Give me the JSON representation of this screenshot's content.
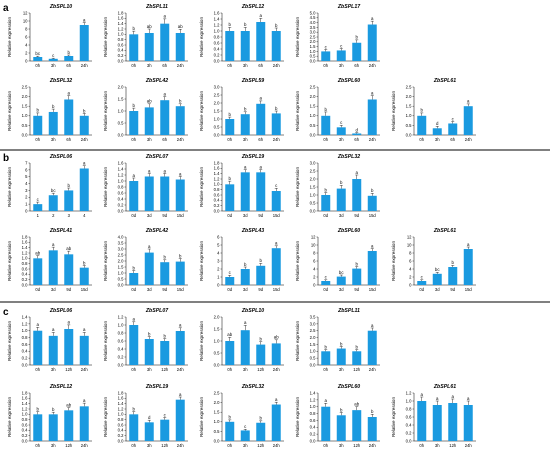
{
  "panels": [
    {
      "label": "a",
      "charts": [
        {
          "type": "bar",
          "title": "ZbSPL10",
          "categories": [
            "0h",
            "3h",
            "6h",
            "24h"
          ],
          "values": [
            1.0,
            0.55,
            1.25,
            9.0
          ],
          "errors": [
            0.2,
            0.15,
            0.25,
            0.6
          ],
          "sig": [
            "bc",
            "c",
            "b",
            "a"
          ],
          "ylim": [
            0,
            12
          ],
          "ystep": 2,
          "ylabel": "Relative expression",
          "color": "#1a9ae0"
        },
        {
          "type": "bar",
          "title": "ZbSPL11",
          "categories": [
            "0h",
            "3h",
            "6h",
            "24h"
          ],
          "values": [
            1.0,
            1.05,
            1.4,
            1.05
          ],
          "errors": [
            0.12,
            0.15,
            0.18,
            0.14
          ],
          "sig": [
            "b",
            "ab",
            "a",
            "ab"
          ],
          "ylim": [
            0,
            1.8
          ],
          "ystep": 0.2,
          "ylabel": "Relative expression",
          "color": "#1a9ae0"
        },
        {
          "type": "bar",
          "title": "ZbSPL12",
          "categories": [
            "0h",
            "3h",
            "6h",
            "24h"
          ],
          "values": [
            1.0,
            1.0,
            1.3,
            1.0
          ],
          "errors": [
            0.12,
            0.12,
            0.12,
            0.1
          ],
          "sig": [
            "b",
            "b",
            "a",
            "b"
          ],
          "ylim": [
            0,
            1.6
          ],
          "ystep": 0.2,
          "ylabel": "Relative expression",
          "color": "#1a9ae0"
        },
        {
          "type": "bar",
          "title": "ZbSPL17",
          "categories": [
            "0h",
            "3h",
            "6h",
            "24h"
          ],
          "values": [
            1.0,
            1.1,
            1.9,
            3.8
          ],
          "errors": [
            0.2,
            0.2,
            0.3,
            0.35
          ],
          "sig": [
            "c",
            "c",
            "b",
            "a"
          ],
          "ylim": [
            0,
            5
          ],
          "ystep": 0.5,
          "ylabel": "Relative expression",
          "color": "#1a9ae0"
        }
      ]
    },
    {
      "label": "",
      "charts": [
        {
          "type": "bar",
          "title": "ZbSPL32",
          "categories": [
            "0h",
            "3h",
            "6h",
            "24h"
          ],
          "values": [
            1.0,
            1.2,
            1.85,
            1.0
          ],
          "errors": [
            0.15,
            0.15,
            0.2,
            0.12
          ],
          "sig": [
            "b",
            "b",
            "a",
            "b"
          ],
          "ylim": [
            0,
            2.5
          ],
          "ystep": 0.5,
          "ylabel": "Relative expression",
          "color": "#1a9ae0"
        },
        {
          "type": "bar",
          "title": "ZbSPL42",
          "categories": [
            "0h",
            "3h",
            "6h",
            "24h"
          ],
          "values": [
            1.0,
            1.15,
            1.45,
            1.2
          ],
          "errors": [
            0.12,
            0.15,
            0.15,
            0.1
          ],
          "sig": [
            "b",
            "ab",
            "a",
            "b"
          ],
          "ylim": [
            0,
            2
          ],
          "ystep": 0.5,
          "ylabel": "Relative expression",
          "color": "#1a9ae0"
        },
        {
          "type": "bar",
          "title": "ZbSPL59",
          "categories": [
            "0h",
            "3h",
            "6h",
            "24h"
          ],
          "values": [
            1.0,
            1.3,
            1.95,
            1.35
          ],
          "errors": [
            0.12,
            0.15,
            0.18,
            0.15
          ],
          "sig": [
            "b",
            "b",
            "a",
            "b"
          ],
          "ylim": [
            0,
            3
          ],
          "ystep": 0.5,
          "ylabel": "Relative expression",
          "color": "#1a9ae0"
        },
        {
          "type": "bar",
          "title": "ZbSPL60",
          "categories": [
            "0h",
            "3h",
            "6h",
            "24h"
          ],
          "values": [
            1.0,
            0.4,
            0.08,
            1.85
          ],
          "errors": [
            0.2,
            0.1,
            0.04,
            0.2
          ],
          "sig": [
            "b",
            "c",
            "d",
            "a"
          ],
          "ylim": [
            0,
            2.5
          ],
          "ystep": 0.5,
          "ylabel": "Relative expression",
          "color": "#1a9ae0"
        },
        {
          "type": "bar",
          "title": "ZbSPL61",
          "categories": [
            "0h",
            "3h",
            "6h",
            "24h"
          ],
          "values": [
            1.0,
            0.35,
            0.6,
            1.5
          ],
          "errors": [
            0.15,
            0.1,
            0.1,
            0.12
          ],
          "sig": [
            "b",
            "d",
            "c",
            "a"
          ],
          "ylim": [
            0,
            2.5
          ],
          "ystep": 0.5,
          "ylabel": "Relative expression",
          "color": "#1a9ae0"
        }
      ]
    },
    {
      "label": "b",
      "charts": [
        {
          "type": "bar",
          "title": "ZbSPL06",
          "categories": [
            "1",
            "2",
            "3",
            "4"
          ],
          "values": [
            1.0,
            2.3,
            3.0,
            6.2
          ],
          "errors": [
            0.3,
            0.3,
            0.35,
            0.4
          ],
          "sig": [
            "c",
            "bc",
            "b",
            "a"
          ],
          "ylim": [
            0,
            7
          ],
          "ystep": 1,
          "ylabel": "Relative expression",
          "color": "#1a9ae0"
        },
        {
          "type": "bar",
          "title": "ZbSPL07",
          "categories": [
            "0d",
            "3d",
            "9d",
            "15d"
          ],
          "values": [
            1.0,
            1.15,
            1.15,
            1.05
          ],
          "errors": [
            0.1,
            0.1,
            0.1,
            0.1
          ],
          "sig": [
            "a",
            "a",
            "a",
            "a"
          ],
          "ylim": [
            0,
            1.6
          ],
          "ystep": 0.2,
          "ylabel": "Relative expression",
          "color": "#1a9ae0"
        },
        {
          "type": "bar",
          "title": "ZbSPL19",
          "categories": [
            "0d",
            "3d",
            "9d",
            "15d"
          ],
          "values": [
            1.0,
            1.45,
            1.45,
            0.75
          ],
          "errors": [
            0.12,
            0.1,
            0.1,
            0.1
          ],
          "sig": [
            "b",
            "a",
            "a",
            "c"
          ],
          "ylim": [
            0,
            1.8
          ],
          "ystep": 0.2,
          "ylabel": "Relative expression",
          "color": "#1a9ae0"
        },
        {
          "type": "bar",
          "title": "ZbSPL32",
          "categories": [
            "0d",
            "3d",
            "9d",
            "15d"
          ],
          "values": [
            1.0,
            1.4,
            2.0,
            0.95
          ],
          "errors": [
            0.15,
            0.2,
            0.25,
            0.15
          ],
          "sig": [
            "b",
            "b",
            "a",
            "b"
          ],
          "ylim": [
            0,
            3
          ],
          "ystep": 0.5,
          "ylabel": "Relative expression",
          "color": "#1a9ae0"
        }
      ]
    },
    {
      "label": "",
      "charts": [
        {
          "type": "bar",
          "title": "ZbSPL41",
          "categories": [
            "0d",
            "3d",
            "9d",
            "15d"
          ],
          "values": [
            1.0,
            1.3,
            1.15,
            0.65
          ],
          "errors": [
            0.1,
            0.12,
            0.12,
            0.08
          ],
          "sig": [
            "ab",
            "a",
            "ab",
            "b"
          ],
          "ylim": [
            0,
            1.8
          ],
          "ystep": 0.2,
          "ylabel": "Relative expression",
          "color": "#1a9ae0"
        },
        {
          "type": "bar",
          "title": "ZbSPL42",
          "categories": [
            "0d",
            "3d",
            "9d",
            "15d"
          ],
          "values": [
            1.0,
            2.7,
            1.9,
            1.95
          ],
          "errors": [
            0.2,
            0.3,
            0.2,
            0.25
          ],
          "sig": [
            "b",
            "a",
            "b",
            "b"
          ],
          "ylim": [
            0,
            4
          ],
          "ystep": 0.5,
          "ylabel": "Relative expression",
          "color": "#1a9ae0"
        },
        {
          "type": "bar",
          "title": "ZbSPL43",
          "categories": [
            "0d",
            "3d",
            "9d",
            "15d"
          ],
          "values": [
            1.0,
            2.0,
            2.4,
            4.6
          ],
          "errors": [
            0.2,
            0.25,
            0.3,
            0.3
          ],
          "sig": [
            "c",
            "b",
            "b",
            "a"
          ],
          "ylim": [
            0,
            6
          ],
          "ystep": 1,
          "ylabel": "Relative expression",
          "color": "#1a9ae0"
        },
        {
          "type": "bar",
          "title": "ZbSPL60",
          "categories": [
            "0d",
            "3d",
            "9d",
            "15d"
          ],
          "values": [
            1.0,
            2.1,
            4.1,
            8.5
          ],
          "errors": [
            0.3,
            0.4,
            0.5,
            0.6
          ],
          "sig": [
            "c",
            "bc",
            "b",
            "a"
          ],
          "ylim": [
            0,
            12
          ],
          "ystep": 2,
          "ylabel": "Relative expression",
          "color": "#1a9ae0"
        },
        {
          "type": "bar",
          "title": "ZbSPL61",
          "categories": [
            "0d",
            "3d",
            "9d",
            "15d"
          ],
          "values": [
            1.0,
            2.8,
            4.5,
            9.0
          ],
          "errors": [
            0.3,
            0.35,
            0.4,
            0.5
          ],
          "sig": [
            "c",
            "bc",
            "b",
            "a"
          ],
          "ylim": [
            0,
            12
          ],
          "ystep": 2,
          "ylabel": "Relative expression",
          "color": "#1a9ae0"
        }
      ]
    },
    {
      "label": "c",
      "charts": [
        {
          "type": "bar",
          "title": "ZbSPL06",
          "categories": [
            "0h",
            "3h",
            "12h",
            "24h"
          ],
          "values": [
            1.0,
            0.85,
            1.05,
            0.85
          ],
          "errors": [
            0.1,
            0.1,
            0.12,
            0.1
          ],
          "sig": [
            "a",
            "a",
            "a",
            "a"
          ],
          "ylim": [
            0,
            1.4
          ],
          "ystep": 0.2,
          "ylabel": "Relative expression",
          "color": "#1a9ae0"
        },
        {
          "type": "bar",
          "title": "ZbSPL07",
          "categories": [
            "0h",
            "3h",
            "12h",
            "24h"
          ],
          "values": [
            1.0,
            0.65,
            0.6,
            0.85
          ],
          "errors": [
            0.08,
            0.06,
            0.06,
            0.08
          ],
          "sig": [
            "a",
            "b",
            "b",
            "a"
          ],
          "ylim": [
            0,
            1.2
          ],
          "ystep": 0.2,
          "ylabel": "Relative expression",
          "color": "#1a9ae0"
        },
        {
          "type": "bar",
          "title": "ZbSPL10",
          "categories": [
            "0h",
            "3h",
            "12h",
            "24h"
          ],
          "values": [
            1.0,
            1.45,
            0.85,
            0.9
          ],
          "errors": [
            0.15,
            0.2,
            0.12,
            0.15
          ],
          "sig": [
            "ab",
            "a",
            "b",
            "ab"
          ],
          "ylim": [
            0,
            2
          ],
          "ystep": 0.5,
          "ylabel": "Relative expression",
          "color": "#1a9ae0"
        },
        {
          "type": "bar",
          "title": "ZbSPL11",
          "categories": [
            "0h",
            "3h",
            "12h",
            "24h"
          ],
          "values": [
            1.0,
            1.2,
            1.0,
            2.5
          ],
          "errors": [
            0.12,
            0.15,
            0.12,
            0.2
          ],
          "sig": [
            "b",
            "b",
            "b",
            "a"
          ],
          "ylim": [
            0,
            3.5
          ],
          "ystep": 0.5,
          "ylabel": "Relative expression",
          "color": "#1a9ae0"
        }
      ]
    },
    {
      "label": "",
      "charts": [
        {
          "type": "bar",
          "title": "ZbSPL12",
          "categories": [
            "0h",
            "3h",
            "12h",
            "24h"
          ],
          "values": [
            1.0,
            1.0,
            1.15,
            1.3
          ],
          "errors": [
            0.1,
            0.08,
            0.1,
            0.12
          ],
          "sig": [
            "b",
            "b",
            "ab",
            "a"
          ],
          "ylim": [
            0,
            1.8
          ],
          "ystep": 0.2,
          "ylabel": "Relative expression",
          "color": "#1a9ae0"
        },
        {
          "type": "bar",
          "title": "ZbSPL19",
          "categories": [
            "0h",
            "3h",
            "12h",
            "24h"
          ],
          "values": [
            1.0,
            0.7,
            0.8,
            1.55
          ],
          "errors": [
            0.1,
            0.08,
            0.08,
            0.1
          ],
          "sig": [
            "b",
            "d",
            "c",
            "a"
          ],
          "ylim": [
            0,
            1.8
          ],
          "ystep": 0.2,
          "ylabel": "Relative expression",
          "color": "#1a9ae0"
        },
        {
          "type": "bar",
          "title": "ZbSPL32",
          "categories": [
            "0h",
            "3h",
            "12h",
            "24h"
          ],
          "values": [
            1.0,
            0.55,
            0.95,
            1.9
          ],
          "errors": [
            0.1,
            0.06,
            0.1,
            0.12
          ],
          "sig": [
            "b",
            "c",
            "b",
            "a"
          ],
          "ylim": [
            0,
            2.5
          ],
          "ystep": 0.5,
          "ylabel": "Relative expression",
          "color": "#1a9ae0"
        },
        {
          "type": "bar",
          "title": "ZbSPL60",
          "categories": [
            "0h",
            "3h",
            "12h",
            "24h"
          ],
          "values": [
            1.0,
            0.75,
            0.9,
            0.7
          ],
          "errors": [
            0.1,
            0.08,
            0.1,
            0.08
          ],
          "sig": [
            "a",
            "b",
            "ab",
            "b"
          ],
          "ylim": [
            0,
            1.4
          ],
          "ystep": 0.2,
          "ylabel": "Relative expression",
          "color": "#1a9ae0"
        },
        {
          "type": "bar",
          "title": "ZbSPL61",
          "categories": [
            "0h",
            "3h",
            "12h",
            "24h"
          ],
          "values": [
            1.0,
            0.9,
            0.95,
            0.9
          ],
          "errors": [
            0.1,
            0.1,
            0.1,
            0.1
          ],
          "sig": [
            "a",
            "a",
            "a",
            "a"
          ],
          "ylim": [
            0,
            1.2
          ],
          "ystep": 0.2,
          "ylabel": "Relative expression",
          "color": "#1a9ae0"
        }
      ]
    }
  ]
}
